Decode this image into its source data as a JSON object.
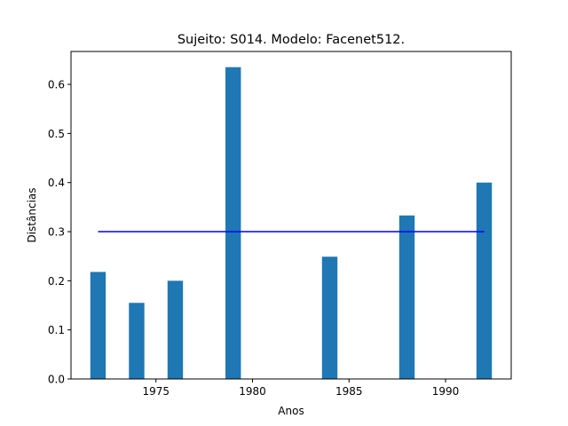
{
  "chart_data": {
    "type": "bar",
    "title": "Sujeito: S014. Modelo: Facenet512.",
    "xlabel": "Anos",
    "ylabel": "Distâncias",
    "x": [
      1972,
      1974,
      1976,
      1979,
      1984,
      1988,
      1992
    ],
    "values": [
      0.218,
      0.155,
      0.2,
      0.635,
      0.249,
      0.333,
      0.4
    ],
    "bar_width_years": 0.8,
    "bar_color": "#1f77b4",
    "threshold": {
      "value": 0.3,
      "x_start": 1972,
      "x_end": 1992,
      "color": "#0000ff"
    },
    "xlim": [
      1970.6,
      1993.4
    ],
    "ylim": [
      0,
      0.667
    ],
    "xticks": [
      1975,
      1980,
      1985,
      1990
    ],
    "yticks": [
      0.0,
      0.1,
      0.2,
      0.3,
      0.4,
      0.5,
      0.6
    ],
    "grid": false,
    "legend": "none"
  }
}
